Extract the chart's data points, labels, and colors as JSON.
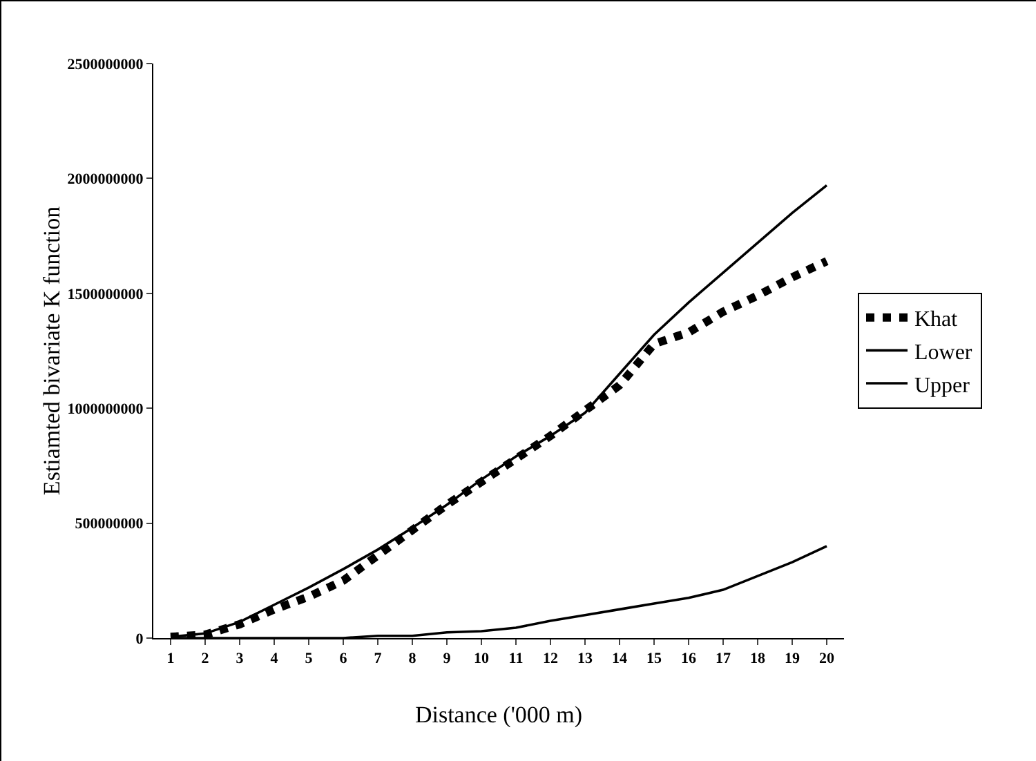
{
  "chart_data": {
    "type": "line",
    "xlabel": "Distance ('000 m)",
    "ylabel": "Estiamted bivariate K function",
    "x": [
      1,
      2,
      3,
      4,
      5,
      6,
      7,
      8,
      9,
      10,
      11,
      12,
      13,
      14,
      15,
      16,
      17,
      18,
      19,
      20
    ],
    "xlim": [
      0.5,
      20.5
    ],
    "xticks": [
      1,
      2,
      3,
      4,
      5,
      6,
      7,
      8,
      9,
      10,
      11,
      12,
      13,
      14,
      15,
      16,
      17,
      18,
      19,
      20
    ],
    "ylim": [
      0,
      2500000000
    ],
    "yticks": [
      0,
      500000000,
      1000000000,
      1500000000,
      2000000000,
      2500000000
    ],
    "grid": false,
    "legend": "right",
    "marker": "none",
    "series": [
      {
        "name": "Khat",
        "color": "#000000",
        "line_style": "dashed",
        "values": [
          5000000,
          15000000,
          60000000,
          125000000,
          180000000,
          250000000,
          360000000,
          470000000,
          580000000,
          680000000,
          780000000,
          880000000,
          990000000,
          1100000000,
          1280000000,
          1330000000,
          1420000000,
          1490000000,
          1570000000,
          1640000000
        ]
      },
      {
        "name": "Lower",
        "color": "#000000",
        "line_style": "solid",
        "values": [
          0,
          0,
          0,
          0,
          0,
          0,
          10000000,
          10000000,
          25000000,
          30000000,
          45000000,
          75000000,
          100000000,
          125000000,
          150000000,
          175000000,
          210000000,
          270000000,
          330000000,
          400000000
        ]
      },
      {
        "name": "Upper",
        "color": "#000000",
        "line_style": "solid",
        "values": [
          5000000,
          20000000,
          70000000,
          145000000,
          220000000,
          300000000,
          385000000,
          480000000,
          580000000,
          690000000,
          790000000,
          880000000,
          980000000,
          1150000000,
          1320000000,
          1460000000,
          1590000000,
          1720000000,
          1850000000,
          1970000000
        ]
      }
    ]
  }
}
